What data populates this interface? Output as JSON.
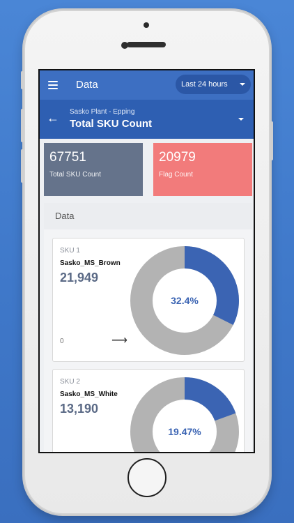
{
  "header": {
    "title": "Data",
    "range_label": "Last 24 hours"
  },
  "subheader": {
    "plant": "Sasko Plant - Epping",
    "title": "Total SKU Count"
  },
  "stats": {
    "total": {
      "value": "67751",
      "label": "Total SKU Count",
      "color": "#65738b"
    },
    "flag": {
      "value": "20979",
      "label": "Flag Count",
      "color": "#f27b7b"
    }
  },
  "data_section": {
    "title": "Data",
    "cards": [
      {
        "label": "SKU 1",
        "name": "Sasko_MS_Brown",
        "value": "21,949",
        "percent": 32.4,
        "percent_text": "32.4%",
        "zero_label": "0"
      },
      {
        "label": "SKU 2",
        "name": "Sasko_MS_White",
        "value": "13,190",
        "percent": 19.47,
        "percent_text": "19.47%"
      }
    ]
  },
  "colors": {
    "primary": "#3d6fc2",
    "primary_dark": "#2e5fb2",
    "donut_fill": "#3b64b3",
    "donut_track": "#b3b3b3"
  }
}
